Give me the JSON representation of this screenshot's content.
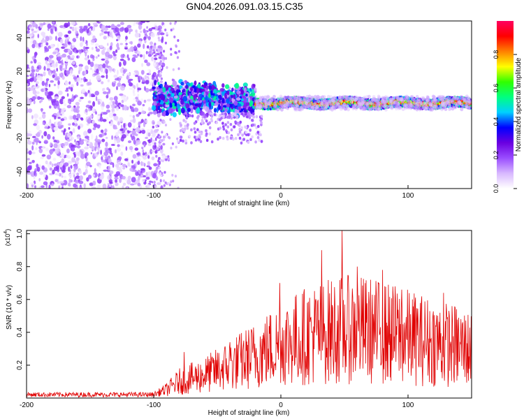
{
  "title": "GN04.2026.091.03.15.C35",
  "chart_data": [
    {
      "type": "heatmap",
      "title": "GN04.2026.091.03.15.C35",
      "xlabel": "Height of straight line (km)",
      "ylabel": "Frequency (Hz)",
      "xlim": [
        -200,
        150
      ],
      "ylim": [
        -50,
        50
      ],
      "xticks": [
        -200,
        -100,
        0,
        100
      ],
      "xtick_labels": [
        "-200",
        "-100",
        "0",
        "100"
      ],
      "yticks": [
        -40,
        -20,
        0,
        20,
        40
      ],
      "ytick_labels": [
        "-40",
        "-20",
        "0",
        "20",
        "40"
      ],
      "colorbar": {
        "label": "Normalized spectral amplitude",
        "range": [
          0,
          1
        ],
        "ticks": [
          0.0,
          0.2,
          0.4,
          0.6,
          0.8
        ],
        "tick_labels": [
          "0.0",
          "0.2",
          "0.4",
          "0.6",
          "0.8"
        ],
        "colors": [
          "#ffffff",
          "#d8b8ff",
          "#9a4dff",
          "#6a00e0",
          "#0000ff",
          "#00d0ff",
          "#00ff80",
          "#30ff00",
          "#ffff00",
          "#ff8000",
          "#ff0000",
          "#ff0060"
        ]
      },
      "regions": [
        {
          "x_range": [
            -200,
            -92
          ],
          "description": "broadband noise",
          "amplitude": 0.1
        },
        {
          "x_range": [
            -100,
            -20
          ],
          "center_freq_hz": 5,
          "amplitude": 0.3
        },
        {
          "x_range": [
            -20,
            150
          ],
          "center_freq_hz": 1,
          "amplitude": 0.9
        }
      ]
    },
    {
      "type": "line",
      "xlabel": "Height of straight line (km)",
      "ylabel": "SNR (10 * v/v)",
      "scale_label_prefix": "(x10",
      "scale_label_exp": "4",
      "scale_label_suffix": ")",
      "xlim": [
        -200,
        150
      ],
      "ylim": [
        0,
        1.02
      ],
      "xticks": [
        -200,
        -100,
        0,
        100
      ],
      "xtick_labels": [
        "-200",
        "-100",
        "0",
        "100"
      ],
      "yticks": [
        0.2,
        0.4,
        0.6,
        0.8,
        1.0
      ],
      "ytick_labels": [
        "0.2",
        "0.4",
        "0.6",
        "0.8",
        "1.0"
      ],
      "color": "#e00000",
      "envelope": {
        "x": [
          -200,
          -100,
          -90,
          -80,
          -60,
          -40,
          -20,
          0,
          20,
          40,
          60,
          80,
          100,
          120,
          150
        ],
        "y": [
          0.02,
          0.02,
          0.05,
          0.1,
          0.14,
          0.2,
          0.26,
          0.33,
          0.38,
          0.41,
          0.42,
          0.4,
          0.37,
          0.34,
          0.3
        ]
      },
      "peaks": [
        {
          "x": -76,
          "y": 0.28
        },
        {
          "x": -40,
          "y": 0.34
        },
        {
          "x": -1,
          "y": 0.7
        },
        {
          "x": 32,
          "y": 0.9
        },
        {
          "x": 48,
          "y": 1.02
        },
        {
          "x": 60,
          "y": 0.8
        },
        {
          "x": 80,
          "y": 0.78
        },
        {
          "x": 95,
          "y": 0.66
        },
        {
          "x": 128,
          "y": 0.64
        },
        {
          "x": 137,
          "y": 0.55
        }
      ]
    }
  ]
}
